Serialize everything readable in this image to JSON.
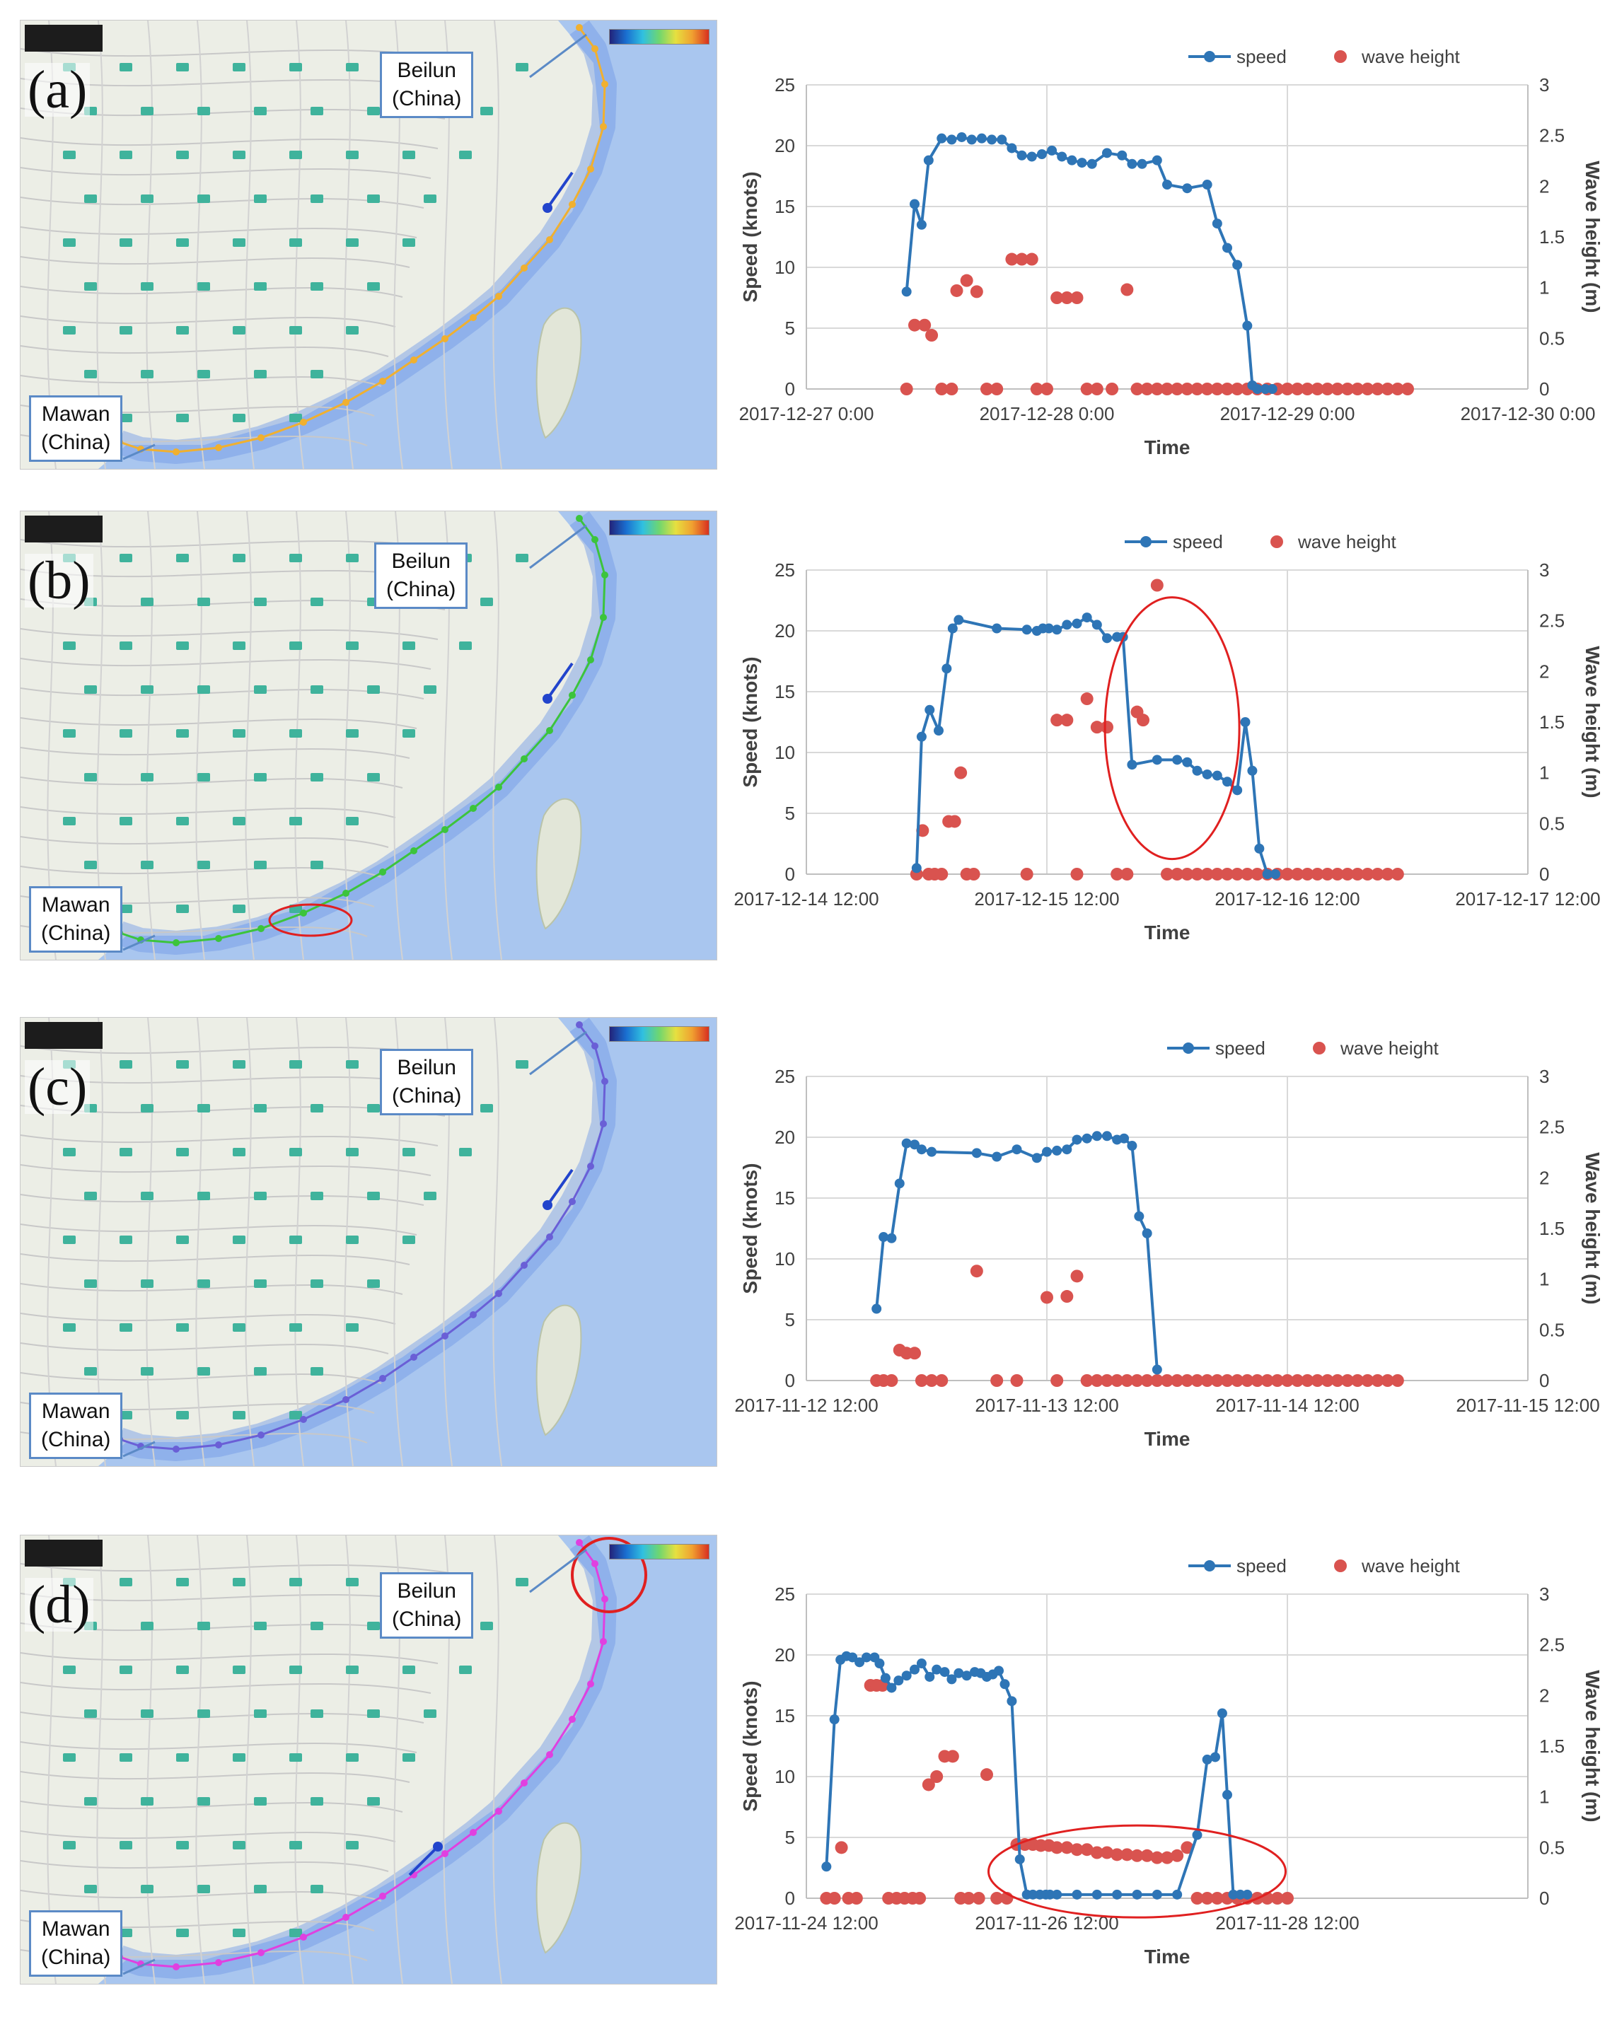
{
  "panels": [
    {
      "letter": "(a)",
      "beilun_label_line1": "Beilun",
      "beilun_label_line2": "(China)",
      "mawan_label_line1": "Mawan",
      "mawan_label_line2": "(China)",
      "route_color": "#f0b030"
    },
    {
      "letter": "(b)",
      "beilun_label_line1": "Beilun",
      "beilun_label_line2": "(China)",
      "mawan_label_line1": "Mawan",
      "mawan_label_line2": "(China)",
      "route_color": "#3cc43c"
    },
    {
      "letter": "(c)",
      "beilun_label_line1": "Beilun",
      "beilun_label_line2": "(China)",
      "mawan_label_line1": "Mawan",
      "mawan_label_line2": "(China)",
      "route_color": "#6a5fd6"
    },
    {
      "letter": "(d)",
      "beilun_label_line1": "Beilun",
      "beilun_label_line2": "(China)",
      "mawan_label_line1": "Mawan",
      "mawan_label_line2": "(China)",
      "route_color": "#e040e0"
    }
  ],
  "colors": {
    "speed": "#2e75b6",
    "wave": "#d9534f",
    "highlight": "#e02020"
  },
  "chart_data": [
    {
      "type": "line",
      "panel": "(a)",
      "xlabel": "Time",
      "ylabel": "Speed (knots)",
      "y2label": "Wave height (m)",
      "xlim": [
        0,
        72
      ],
      "ylim": [
        0,
        25
      ],
      "y2lim": [
        0,
        3
      ],
      "xticks": [
        0,
        24,
        48,
        72
      ],
      "xticklabels": [
        "2017-12-27 0:00",
        "2017-12-28 0:00",
        "2017-12-29 0:00",
        "2017-12-30 0:00"
      ],
      "yticks": [
        0,
        5,
        10,
        15,
        20,
        25
      ],
      "y2ticks": [
        "0",
        "0.5",
        "1",
        "1.5",
        "2",
        "2.5",
        "3"
      ],
      "legend": {
        "speed": "speed",
        "wave": "wave height"
      },
      "speed": {
        "x": [
          10,
          10.8,
          11.5,
          12.2,
          13.5,
          14.5,
          15.5,
          16.5,
          17.5,
          18.5,
          19.5,
          20.5,
          21.5,
          22.5,
          23.5,
          24.5,
          25.5,
          26.5,
          27.5,
          28.5,
          30,
          31.5,
          32.5,
          33.5,
          35,
          36,
          38,
          40,
          41,
          42,
          43,
          44,
          44.5,
          45,
          45.8,
          46.5
        ],
        "y": [
          8,
          15.2,
          13.5,
          18.8,
          20.6,
          20.5,
          20.7,
          20.5,
          20.6,
          20.5,
          20.5,
          19.8,
          19.2,
          19.1,
          19.3,
          19.6,
          19.1,
          18.8,
          18.6,
          18.5,
          19.4,
          19.2,
          18.5,
          18.5,
          18.8,
          16.8,
          16.5,
          16.8,
          13.6,
          11.6,
          10.2,
          5.2,
          0.3,
          0,
          0,
          0
        ]
      },
      "wave_height": {
        "x": [
          10,
          10.8,
          11.8,
          12.5,
          13.5,
          14.5,
          15,
          16,
          17,
          18,
          19,
          20.5,
          21.5,
          22.5,
          23,
          24,
          25,
          26,
          27,
          28,
          29,
          30.5,
          32,
          33,
          34,
          35,
          36,
          37,
          38,
          39,
          40,
          41,
          42,
          43,
          44,
          45,
          46,
          47,
          48,
          49,
          50,
          51,
          52,
          53,
          54,
          55,
          56,
          57,
          58,
          59,
          60
        ],
        "y": [
          0,
          0.63,
          0.63,
          0.53,
          0,
          0,
          0.97,
          1.07,
          0.96,
          0,
          0,
          1.28,
          1.28,
          1.28,
          0,
          0,
          0.9,
          0.9,
          0.9,
          0,
          0,
          0,
          0.98,
          0,
          0,
          0,
          0,
          0,
          0,
          0,
          0,
          0,
          0,
          0,
          0,
          0,
          0,
          0,
          0,
          0,
          0,
          0,
          0,
          0,
          0,
          0,
          0,
          0,
          0,
          0,
          0
        ]
      }
    },
    {
      "type": "line",
      "panel": "(b)",
      "xlabel": "Time",
      "ylabel": "Speed (knots)",
      "y2label": "Wave height (m)",
      "xlim": [
        0,
        72
      ],
      "ylim": [
        0,
        25
      ],
      "y2lim": [
        0,
        3
      ],
      "xticks": [
        0,
        24,
        48,
        72
      ],
      "xticklabels": [
        "2017-12-14 12:00",
        "2017-12-15 12:00",
        "2017-12-16 12:00",
        "2017-12-17 12:00"
      ],
      "yticks": [
        0,
        5,
        10,
        15,
        20,
        25
      ],
      "y2ticks": [
        "0",
        "0.5",
        "1",
        "1.5",
        "2",
        "2.5",
        "3"
      ],
      "legend": {
        "speed": "speed",
        "wave": "wave height"
      },
      "speed": {
        "x": [
          11,
          11.5,
          12.3,
          13.2,
          14,
          14.6,
          15.2,
          19,
          22,
          23,
          23.6,
          24.2,
          25,
          26,
          27,
          28,
          29,
          30,
          31,
          31.6,
          32.5,
          35,
          37,
          38,
          39,
          40,
          41,
          42,
          43,
          43.8,
          44.5,
          45.2,
          46,
          46.8
        ],
        "y": [
          0.5,
          11.3,
          13.5,
          11.8,
          16.9,
          20.2,
          20.9,
          20.2,
          20.1,
          20.0,
          20.2,
          20.2,
          20.1,
          20.5,
          20.6,
          21.1,
          20.5,
          19.4,
          19.5,
          19.5,
          9.0,
          9.4,
          9.4,
          9.2,
          8.5,
          8.2,
          8.1,
          7.6,
          6.9,
          12.5,
          8.5,
          2.1,
          0,
          0
        ]
      },
      "wave_height": {
        "x": [
          11,
          11.6,
          12.2,
          12.8,
          13.5,
          14.2,
          14.8,
          15.4,
          16,
          16.7,
          22,
          25,
          26,
          27,
          28,
          29,
          30,
          31,
          32,
          33,
          33.6,
          35,
          36,
          37,
          38,
          39,
          40,
          41,
          42,
          43,
          44,
          45,
          46,
          47,
          48,
          49,
          50,
          51,
          52,
          53,
          54,
          55,
          56,
          57,
          58,
          59
        ],
        "y": [
          0,
          0.43,
          0,
          0,
          0,
          0.52,
          0.52,
          1.0,
          0,
          0,
          0,
          1.52,
          1.52,
          0,
          1.73,
          1.45,
          1.45,
          0,
          0,
          1.6,
          1.52,
          2.85,
          0,
          0,
          0,
          0,
          0,
          0,
          0,
          0,
          0,
          0,
          0,
          0,
          0,
          0,
          0,
          0,
          0,
          0,
          0,
          0,
          0,
          0,
          0,
          0
        ]
      },
      "highlight": "ellipse around speed drop near 2017-12-16 12:00"
    },
    {
      "type": "line",
      "panel": "(c)",
      "xlabel": "Time",
      "ylabel": "Speed (knots)",
      "y2label": "Wave height (m)",
      "xlim": [
        0,
        72
      ],
      "ylim": [
        0,
        25
      ],
      "y2lim": [
        0,
        3
      ],
      "xticks": [
        0,
        24,
        48,
        72
      ],
      "xticklabels": [
        "2017-11-12 12:00",
        "2017-11-13 12:00",
        "2017-11-14 12:00",
        "2017-11-15 12:00"
      ],
      "yticks": [
        0,
        5,
        10,
        15,
        20,
        25
      ],
      "y2ticks": [
        "0",
        "0.5",
        "1",
        "1.5",
        "2",
        "2.5",
        "3"
      ],
      "legend": {
        "speed": "speed",
        "wave": "wave height"
      },
      "speed": {
        "x": [
          7,
          7.7,
          8.5,
          9.3,
          10,
          10.8,
          11.5,
          12.5,
          17,
          19,
          21,
          23,
          24,
          25,
          26,
          27,
          28,
          29,
          30,
          31,
          31.7,
          32.5,
          33.2,
          34,
          35
        ],
        "y": [
          5.9,
          11.8,
          11.7,
          16.2,
          19.5,
          19.4,
          19.0,
          18.8,
          18.7,
          18.4,
          19.0,
          18.3,
          18.8,
          18.9,
          19.0,
          19.8,
          19.9,
          20.1,
          20.1,
          19.8,
          19.9,
          19.3,
          13.5,
          12.1,
          0.9
        ]
      },
      "wave_height": {
        "x": [
          7,
          7.7,
          8.5,
          9.3,
          10,
          10.8,
          11.5,
          12.5,
          13.5,
          17,
          19,
          21,
          24,
          25,
          26,
          27,
          28,
          29,
          30,
          31,
          32,
          33,
          34,
          35,
          36,
          37,
          38,
          39,
          40,
          41,
          42,
          43,
          44,
          45,
          46,
          47,
          48,
          49,
          50,
          51,
          52,
          53,
          54,
          55,
          56,
          57,
          58,
          59
        ],
        "y": [
          0,
          0,
          0,
          0.3,
          0.27,
          0.27,
          0,
          0,
          0,
          1.08,
          0,
          0,
          0.82,
          0,
          0.83,
          1.03,
          0,
          0,
          0,
          0,
          0,
          0,
          0,
          0,
          0,
          0,
          0,
          0,
          0,
          0,
          0,
          0,
          0,
          0,
          0,
          0,
          0,
          0,
          0,
          0,
          0,
          0,
          0,
          0,
          0,
          0,
          0,
          0
        ]
      }
    },
    {
      "type": "line",
      "panel": "(d)",
      "xlabel": "Time",
      "ylabel": "Speed (knots)",
      "y2label": "Wave height (m)",
      "xlim": [
        0,
        72
      ],
      "ylim": [
        0,
        25
      ],
      "y2lim": [
        0,
        3
      ],
      "xticks": [
        0,
        24,
        48,
        72
      ],
      "xticklabels": [
        "2017-11-24 12:00",
        "2017-11-26 12:00",
        "2017-11-28 12:00"
      ],
      "xticklabel_positions": [
        0,
        24,
        48
      ],
      "yticks": [
        0,
        5,
        10,
        15,
        20,
        25
      ],
      "y2ticks": [
        "0",
        "0.5",
        "1",
        "1.5",
        "2",
        "2.5",
        "3"
      ],
      "legend": {
        "speed": "speed",
        "wave": "wave height"
      },
      "speed": {
        "x": [
          2,
          2.8,
          3.4,
          4,
          4.6,
          5.3,
          6,
          6.8,
          7.3,
          7.9,
          8.5,
          9.2,
          10,
          10.8,
          11.5,
          12.3,
          13,
          13.8,
          14.5,
          15.2,
          16,
          16.8,
          17.4,
          18,
          18.6,
          19.2,
          19.8,
          20.5,
          21.3,
          22,
          22.6,
          23.3,
          23.9,
          24.3,
          25,
          27,
          29,
          31,
          33,
          35,
          37,
          39,
          40,
          40.8,
          41.5,
          42,
          42.6,
          43.3,
          44
        ],
        "y": [
          2.6,
          14.7,
          19.6,
          19.9,
          19.8,
          19.4,
          19.8,
          19.8,
          19.3,
          18.1,
          17.3,
          17.9,
          18.3,
          18.8,
          19.3,
          18.2,
          18.8,
          18.6,
          18.0,
          18.5,
          18.3,
          18.6,
          18.5,
          18.2,
          18.4,
          18.7,
          17.6,
          16.2,
          3.2,
          0.3,
          0.3,
          0.3,
          0.3,
          0.3,
          0.3,
          0.3,
          0.3,
          0.3,
          0.3,
          0.3,
          0.3,
          5.2,
          11.4,
          11.6,
          15.2,
          8.5,
          0.3,
          0.3,
          0.3
        ]
      },
      "wave_height": {
        "x": [
          2,
          2.8,
          3.5,
          4.2,
          5,
          6.4,
          7,
          7.6,
          8.2,
          9,
          9.8,
          10.6,
          11.3,
          12.2,
          13,
          13.8,
          14.6,
          15.4,
          16.2,
          17.2,
          18,
          19,
          20,
          21,
          21.8,
          22.6,
          23.4,
          24.2,
          25,
          26,
          27,
          28,
          29,
          30,
          31,
          32,
          33,
          34,
          35,
          36,
          37,
          38,
          39,
          40,
          41,
          42,
          43,
          44,
          45,
          46,
          47,
          48
        ],
        "y": [
          0,
          0,
          0.5,
          0,
          0,
          2.1,
          2.1,
          2.1,
          0,
          0,
          0,
          0,
          0,
          1.12,
          1.2,
          1.4,
          1.4,
          0,
          0,
          0,
          1.22,
          0,
          0,
          0.53,
          0.53,
          0.53,
          0.52,
          0.52,
          0.5,
          0.5,
          0.48,
          0.48,
          0.45,
          0.45,
          0.43,
          0.43,
          0.42,
          0.42,
          0.4,
          0.4,
          0.42,
          0.5,
          0,
          0,
          0,
          0,
          0,
          0,
          0,
          0,
          0,
          0
        ]
      },
      "highlight": "ellipse around near-zero speed period after 2017-11-26 12:00"
    }
  ]
}
